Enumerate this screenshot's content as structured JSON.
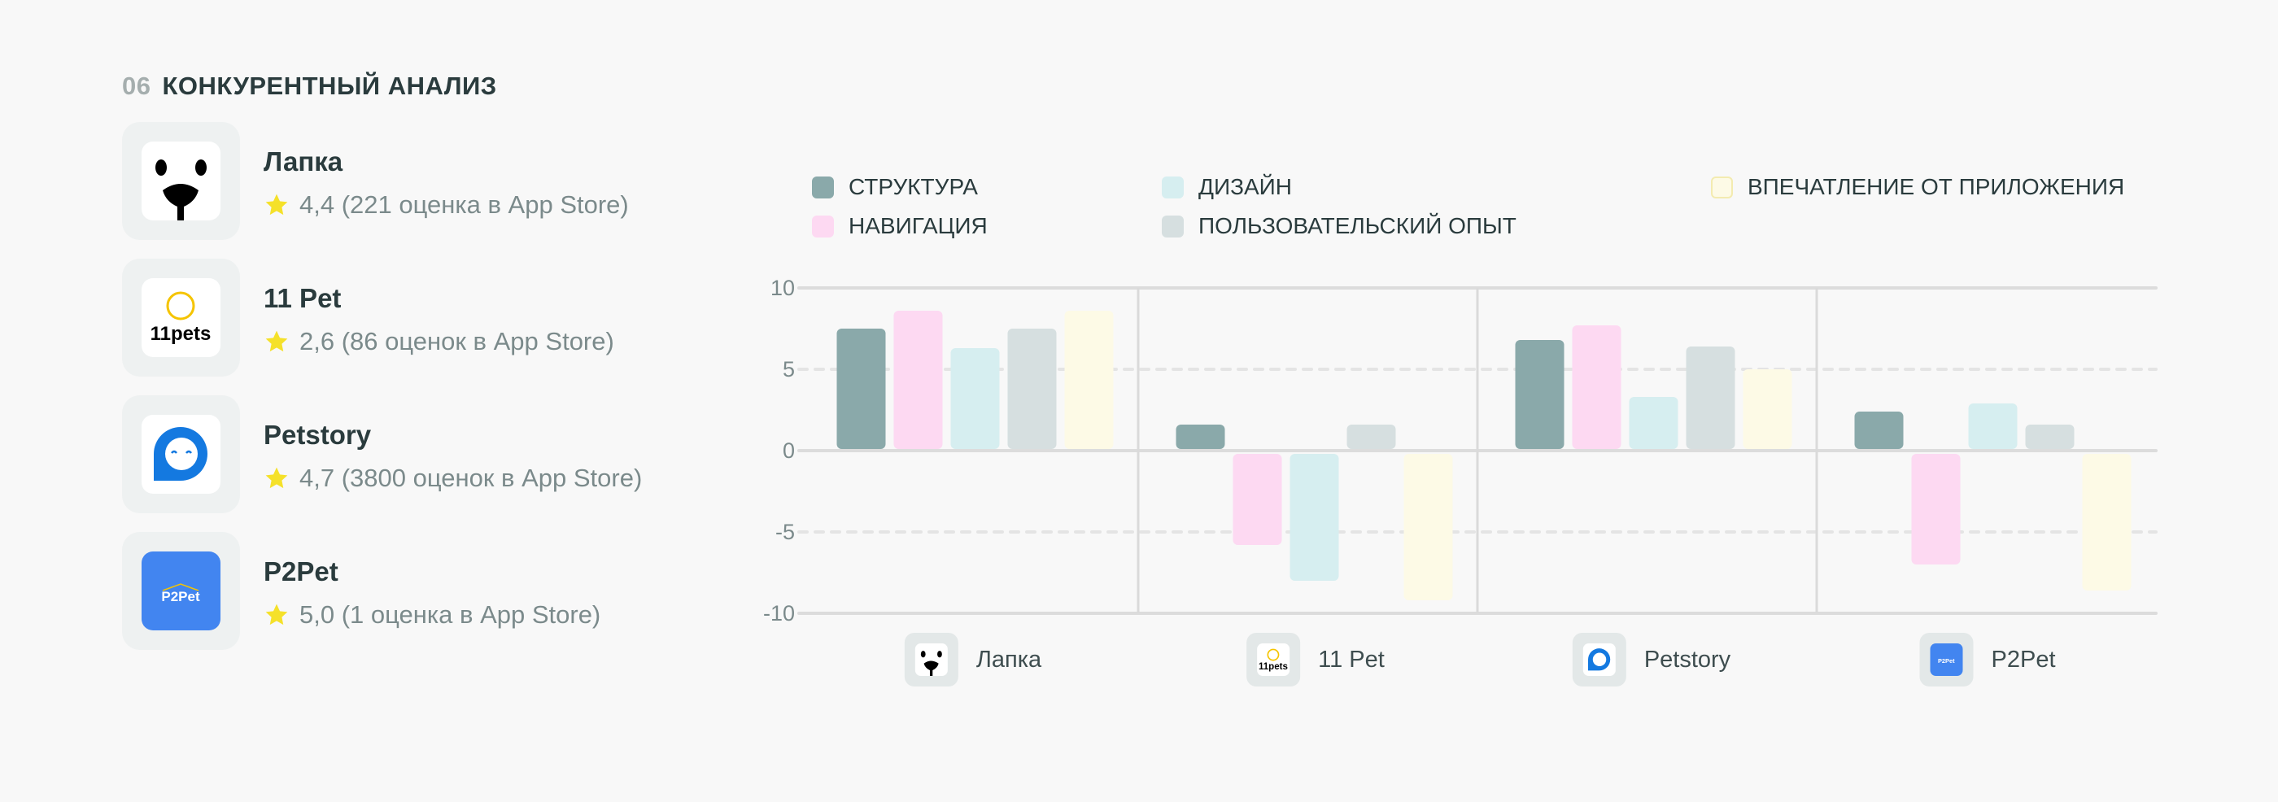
{
  "header": {
    "number": "06",
    "title": "КОНКУРЕНТНЫЙ АНАЛИЗ"
  },
  "apps": [
    {
      "name": "Лапка",
      "rating": "4,4 (221 оценка в App Store)",
      "icon": "lapka-logo"
    },
    {
      "name": "11 Pet",
      "rating": "2,6 (86 оценок в App Store)",
      "icon": "11pets-logo",
      "logo_text": "11pets"
    },
    {
      "name": "Petstory",
      "rating": "4,7 (3800 оценок в App Store)",
      "icon": "petstory-logo"
    },
    {
      "name": "P2Pet",
      "rating": "5,0 (1 оценка в App Store)",
      "icon": "p2pet-logo",
      "logo_text": "P2Pet"
    }
  ],
  "colors": {
    "star": "#f5e12a",
    "text": "#2a3b3d",
    "muted": "#7b8a8b"
  },
  "chart_data": {
    "type": "bar",
    "categories": [
      "Лапка",
      "11 Pet",
      "Petstory",
      "P2Pet"
    ],
    "ylim": [
      -10,
      10
    ],
    "yticks": [
      "10",
      "5",
      "0",
      "-5",
      "-10"
    ],
    "ytick_values": [
      10,
      5,
      0,
      -5,
      -10
    ],
    "grid": true,
    "legend_position": "top",
    "series": [
      {
        "name": "СТРУКТУРА",
        "color": "#8aa9aa",
        "values": [
          7.5,
          1.6,
          6.8,
          2.4
        ]
      },
      {
        "name": "НАВИГАЦИЯ",
        "color": "#fdd9f2",
        "values": [
          8.6,
          -5.8,
          7.7,
          -7.0
        ]
      },
      {
        "name": "ДИЗАЙН",
        "color": "#d6eef0",
        "values": [
          6.3,
          -8.0,
          3.3,
          2.9
        ]
      },
      {
        "name": "ПОЛЬЗОВАТЕЛЬСКИЙ ОПЫТ",
        "color": "#d6dfe0",
        "values": [
          7.5,
          1.6,
          6.4,
          1.6
        ]
      },
      {
        "name": "ВПЕЧАТЛЕНИЕ ОТ ПРИЛОЖЕНИЯ",
        "color": "#fdfae6",
        "values": [
          8.6,
          -9.2,
          5.0,
          -8.6
        ]
      }
    ]
  }
}
